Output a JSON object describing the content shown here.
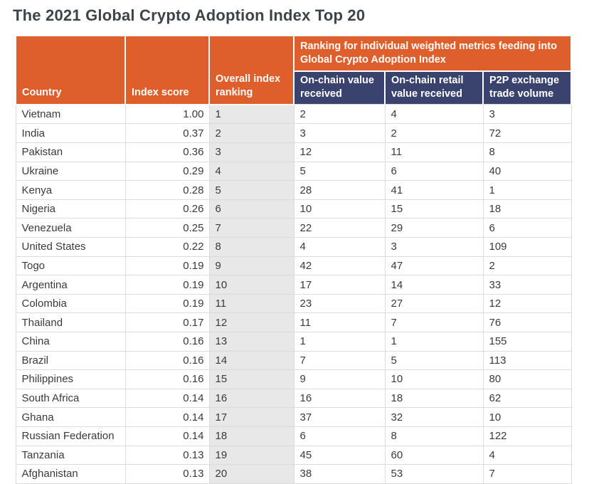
{
  "title": "The 2021 Global Crypto Adoption Index Top 20",
  "chart_data": {
    "type": "table",
    "title": "The 2021 Global Crypto Adoption Index Top 20",
    "column_group_header": "Ranking for individual weighted metrics feeding into Global Crypto Adoption Index",
    "columns": [
      "Country",
      "Index score",
      "Overall index ranking",
      "On-chain value received",
      "On-chain retail value received",
      "P2P exchange trade volume"
    ],
    "rows": [
      [
        "Vietnam",
        "1.00",
        "1",
        "2",
        "4",
        "3"
      ],
      [
        "India",
        "0.37",
        "2",
        "3",
        "2",
        "72"
      ],
      [
        "Pakistan",
        "0.36",
        "3",
        "12",
        "11",
        "8"
      ],
      [
        "Ukraine",
        "0.29",
        "4",
        "5",
        "6",
        "40"
      ],
      [
        "Kenya",
        "0.28",
        "5",
        "28",
        "41",
        "1"
      ],
      [
        "Nigeria",
        "0.26",
        "6",
        "10",
        "15",
        "18"
      ],
      [
        "Venezuela",
        "0.25",
        "7",
        "22",
        "29",
        "6"
      ],
      [
        "United States",
        "0.22",
        "8",
        "4",
        "3",
        "109"
      ],
      [
        "Togo",
        "0.19",
        "9",
        "42",
        "47",
        "2"
      ],
      [
        "Argentina",
        "0.19",
        "10",
        "17",
        "14",
        "33"
      ],
      [
        "Colombia",
        "0.19",
        "11",
        "23",
        "27",
        "12"
      ],
      [
        "Thailand",
        "0.17",
        "12",
        "11",
        "7",
        "76"
      ],
      [
        "China",
        "0.16",
        "13",
        "1",
        "1",
        "155"
      ],
      [
        "Brazil",
        "0.16",
        "14",
        "7",
        "5",
        "113"
      ],
      [
        "Philippines",
        "0.16",
        "15",
        "9",
        "10",
        "80"
      ],
      [
        "South Africa",
        "0.14",
        "16",
        "16",
        "18",
        "62"
      ],
      [
        "Ghana",
        "0.14",
        "17",
        "37",
        "32",
        "10"
      ],
      [
        "Russian Federation",
        "0.14",
        "18",
        "6",
        "8",
        "122"
      ],
      [
        "Tanzania",
        "0.13",
        "19",
        "45",
        "60",
        "4"
      ],
      [
        "Afghanistan",
        "0.13",
        "20",
        "38",
        "53",
        "7"
      ]
    ]
  },
  "colors": {
    "header_orange": "#DE5F2C",
    "header_navy": "#3A436E",
    "ranking_column_bg": "#E9E8E9",
    "grid_line": "#DBDBDB",
    "title_text": "#3D4449",
    "body_text": "#3A3A3A",
    "header_text": "#FFFFFF"
  }
}
